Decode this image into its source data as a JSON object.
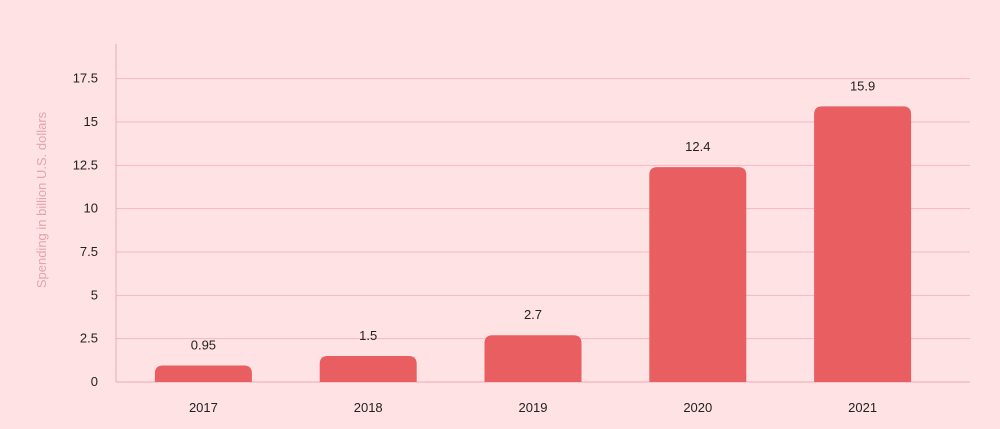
{
  "chart_data": {
    "type": "bar",
    "categories": [
      "2017",
      "2018",
      "2019",
      "2020",
      "2021"
    ],
    "values": [
      0.95,
      1.5,
      2.7,
      12.4,
      15.9
    ],
    "data_labels": [
      "0.95",
      "1.5",
      "2.7",
      "12.4",
      "15.9"
    ],
    "yticks": [
      0,
      2.5,
      5,
      7.5,
      10,
      12.5,
      15,
      17.5
    ],
    "ytick_labels": [
      "0",
      "2.5",
      "5",
      "7.5",
      "10",
      "12.5",
      "15",
      "17.5"
    ],
    "ylim": [
      0,
      19.5
    ],
    "xlabel": "",
    "ylabel": "Spending in billion U.S. dollars",
    "grid": true,
    "legend": "none",
    "colors": {
      "bar": "#e95e60",
      "background": "#ffe2e4",
      "grid": "#f3b9bf",
      "axis": "#e6aeb4",
      "ylabel": "#e3a5ab"
    }
  }
}
